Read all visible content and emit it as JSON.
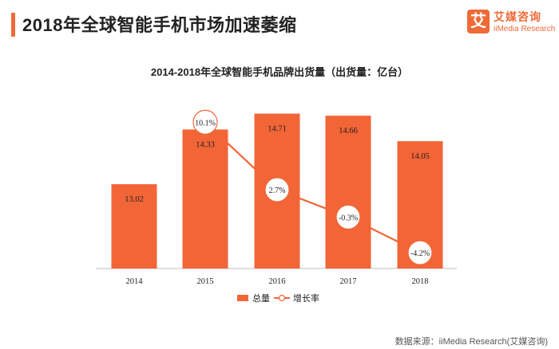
{
  "page": {
    "title": "2018年全球智能手机市场加速萎缩",
    "logo_cn": "艾媒咨询",
    "logo_en": "iiMedia Research",
    "logo_mark": "艾",
    "source": "数据来源：iiMedia Research(艾媒咨询)"
  },
  "colors": {
    "accent": "#ee6a37",
    "bar": "#f26537",
    "line": "#f26537"
  },
  "chart_data": {
    "type": "bar",
    "title": "2014-2018年全球智能手机品牌出货量（出货量：亿台）",
    "categories": [
      "2014",
      "2015",
      "2016",
      "2017",
      "2018"
    ],
    "series": [
      {
        "name": "总量",
        "type": "bar",
        "values": [
          13.02,
          14.33,
          14.71,
          14.66,
          14.05
        ],
        "labels": [
          "13.02",
          "14.33",
          "14.71",
          "14.66",
          "14.05"
        ]
      },
      {
        "name": "增长率",
        "type": "line",
        "values": [
          null,
          10.1,
          2.7,
          -0.3,
          -4.2
        ],
        "labels": [
          "",
          "10.1%",
          "2.7%",
          "-0.3%",
          "-4.2%"
        ]
      }
    ],
    "legend": "bottom-center",
    "grid": false
  }
}
